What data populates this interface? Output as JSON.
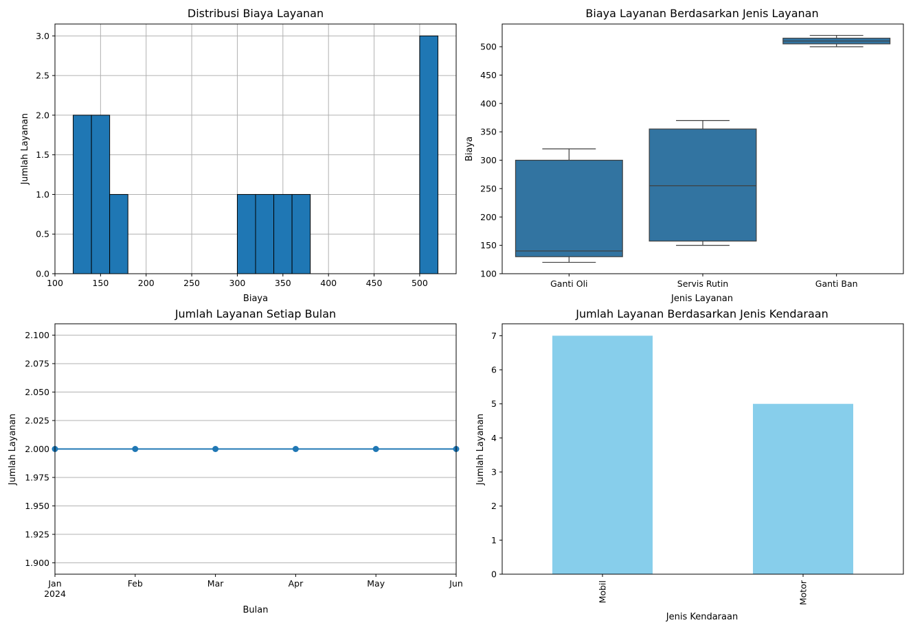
{
  "chart_data": [
    {
      "type": "bar",
      "title": "Distribusi Biaya Layanan",
      "xlabel": "Biaya",
      "ylabel": "Jumlah Layanan",
      "xlim": [
        100,
        540
      ],
      "ylim": [
        0,
        3.15
      ],
      "grid": true,
      "color": "#1f77b4",
      "bins": [
        {
          "start": 120,
          "end": 140,
          "count": 2
        },
        {
          "start": 140,
          "end": 160,
          "count": 2
        },
        {
          "start": 160,
          "end": 180,
          "count": 1
        },
        {
          "start": 180,
          "end": 200,
          "count": 0
        },
        {
          "start": 200,
          "end": 220,
          "count": 0
        },
        {
          "start": 220,
          "end": 240,
          "count": 0
        },
        {
          "start": 240,
          "end": 260,
          "count": 0
        },
        {
          "start": 260,
          "end": 280,
          "count": 0
        },
        {
          "start": 280,
          "end": 300,
          "count": 0
        },
        {
          "start": 300,
          "end": 320,
          "count": 1
        },
        {
          "start": 320,
          "end": 340,
          "count": 1
        },
        {
          "start": 340,
          "end": 360,
          "count": 1
        },
        {
          "start": 360,
          "end": 380,
          "count": 1
        },
        {
          "start": 380,
          "end": 400,
          "count": 0
        },
        {
          "start": 400,
          "end": 420,
          "count": 0
        },
        {
          "start": 420,
          "end": 440,
          "count": 0
        },
        {
          "start": 440,
          "end": 460,
          "count": 0
        },
        {
          "start": 460,
          "end": 480,
          "count": 0
        },
        {
          "start": 480,
          "end": 500,
          "count": 0
        },
        {
          "start": 500,
          "end": 520,
          "count": 3
        }
      ],
      "xticks": [
        "100",
        "150",
        "200",
        "250",
        "300",
        "350",
        "400",
        "450",
        "500"
      ],
      "yticks": [
        "0.0",
        "0.5",
        "1.0",
        "1.5",
        "2.0",
        "2.5",
        "3.0"
      ]
    },
    {
      "type": "box",
      "title": "Biaya Layanan Berdasarkan Jenis Layanan",
      "xlabel": "Jenis Layanan",
      "ylabel": "Biaya",
      "ylim": [
        100,
        540
      ],
      "color": "#3274a1",
      "boxes": [
        {
          "category": "Ganti Oli",
          "min": 120,
          "q1": 130,
          "median": 140,
          "q3": 300,
          "max": 320
        },
        {
          "category": "Servis Rutin",
          "min": 150,
          "q1": 157.5,
          "median": 255,
          "q3": 355,
          "max": 370
        },
        {
          "category": "Ganti Ban",
          "min": 500,
          "q1": 505,
          "median": 510,
          "q3": 515,
          "max": 520
        }
      ],
      "yticks": [
        "100",
        "150",
        "200",
        "250",
        "300",
        "350",
        "400",
        "450",
        "500"
      ]
    },
    {
      "type": "line",
      "title": "Jumlah Layanan Setiap Bulan",
      "xlabel": "Bulan",
      "ylabel": "Jumlah Layanan",
      "ylim": [
        1.89,
        2.11
      ],
      "grid": "y",
      "color": "#1f77b4",
      "x": [
        "Jan",
        "Feb",
        "Mar",
        "Apr",
        "May",
        "Jun"
      ],
      "year_label": "2024",
      "values": [
        2,
        2,
        2,
        2,
        2,
        2
      ],
      "yticks": [
        "1.900",
        "1.925",
        "1.950",
        "1.975",
        "2.000",
        "2.025",
        "2.050",
        "2.075",
        "2.100"
      ]
    },
    {
      "type": "bar",
      "title": "Jumlah Layanan Berdasarkan Jenis Kendaraan",
      "xlabel": "Jenis Kendaraan",
      "ylabel": "Jumlah Layanan",
      "ylim": [
        0,
        7.35
      ],
      "color": "#87ceeb",
      "categories": [
        "Mobil",
        "Motor"
      ],
      "values": [
        7,
        5
      ],
      "yticks": [
        "0",
        "1",
        "2",
        "3",
        "4",
        "5",
        "6",
        "7"
      ]
    }
  ]
}
